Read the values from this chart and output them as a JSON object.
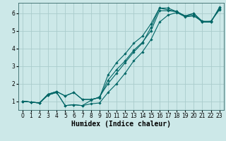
{
  "xlabel": "Humidex (Indice chaleur)",
  "bg_color": "#cce8e8",
  "grid_color": "#aacccc",
  "line_color": "#006666",
  "xlim": [
    -0.5,
    23.5
  ],
  "ylim": [
    0.5,
    6.6
  ],
  "lines": [
    {
      "x": [
        0,
        1,
        2,
        3,
        4,
        5,
        6,
        7,
        8,
        9,
        10,
        11,
        12,
        13,
        14,
        15,
        16,
        17,
        18,
        19,
        20,
        21,
        22,
        23
      ],
      "y": [
        1.0,
        0.95,
        0.9,
        1.4,
        1.55,
        1.3,
        1.5,
        1.1,
        1.1,
        1.2,
        2.5,
        3.2,
        3.7,
        4.3,
        4.7,
        5.4,
        6.3,
        6.2,
        6.1,
        5.85,
        6.0,
        5.55,
        5.5,
        6.3
      ]
    },
    {
      "x": [
        0,
        1,
        2,
        3,
        4,
        5,
        6,
        7,
        8,
        9,
        10,
        11,
        12,
        13,
        14,
        15,
        16,
        17,
        18,
        19,
        20,
        21,
        22,
        23
      ],
      "y": [
        1.0,
        0.95,
        0.9,
        1.4,
        1.55,
        1.3,
        1.5,
        1.1,
        1.1,
        1.2,
        2.2,
        2.8,
        3.3,
        3.9,
        4.35,
        5.0,
        6.15,
        6.15,
        6.1,
        5.85,
        5.9,
        5.5,
        5.55,
        6.25
      ]
    },
    {
      "x": [
        0,
        1,
        2,
        3,
        4,
        5,
        6,
        7,
        8,
        9,
        10,
        11,
        12,
        13,
        14,
        15,
        16,
        17,
        18,
        19,
        20,
        21,
        22,
        23
      ],
      "y": [
        1.0,
        0.95,
        0.9,
        1.35,
        1.5,
        0.75,
        0.8,
        0.75,
        0.85,
        0.9,
        1.5,
        2.0,
        2.6,
        3.3,
        3.8,
        4.5,
        5.5,
        5.9,
        6.05,
        5.8,
        5.85,
        5.55,
        5.55,
        6.2
      ]
    },
    {
      "x": [
        0,
        1,
        2,
        3,
        4,
        5,
        6,
        7,
        8,
        9,
        10,
        11,
        12,
        13,
        14,
        15,
        16,
        17,
        18,
        19,
        20,
        21,
        22,
        23
      ],
      "y": [
        1.0,
        0.95,
        0.9,
        1.35,
        1.5,
        0.75,
        0.8,
        0.75,
        1.05,
        1.25,
        2.0,
        2.6,
        3.2,
        3.8,
        4.3,
        5.2,
        6.3,
        6.3,
        6.1,
        5.85,
        6.0,
        5.5,
        5.5,
        6.35
      ]
    }
  ],
  "xticks": [
    0,
    1,
    2,
    3,
    4,
    5,
    6,
    7,
    8,
    9,
    10,
    11,
    12,
    13,
    14,
    15,
    16,
    17,
    18,
    19,
    20,
    21,
    22,
    23
  ],
  "yticks": [
    1,
    2,
    3,
    4,
    5,
    6
  ],
  "tick_fontsize": 5.5,
  "xlabel_fontsize": 7.0
}
